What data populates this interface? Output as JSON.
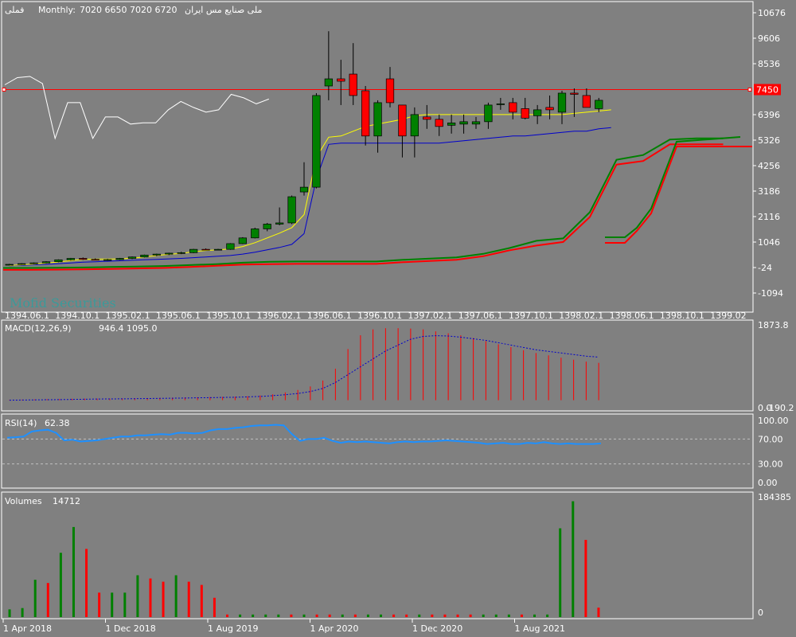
{
  "header": {
    "title": "ملی صنایع مس ایران",
    "symbol": "فملی",
    "timeframe": "Monthly:",
    "ohlc": "7020 6650 7020 6720"
  },
  "watermark": "Mofid Securities",
  "colors": {
    "background": "#808080",
    "bull": "#008000",
    "bear": "#ff0000",
    "ma_fast": "#ffff00",
    "ma_slow": "#0000cc",
    "white_line": "#ffffff",
    "price_line": "#ff0000",
    "rsi": "#1e90ff"
  },
  "chart_data": [
    {
      "type": "candlestick",
      "panel": "price",
      "y_ticks": [
        "10676",
        "9606",
        "8536",
        "7450",
        "6396",
        "5326",
        "4256",
        "3186",
        "2116",
        "1046",
        "-24",
        "-1094"
      ],
      "ylim": [
        -1094,
        10676
      ],
      "current_price_label": "7450",
      "x_ticks": [
        "1394.06.1",
        "1394.10.1",
        "1395.02.1",
        "1395.06.1",
        "1395.10.1",
        "1396.02.1",
        "1396.06.1",
        "1396.10.1",
        "1397.02.1",
        "1397.06.1",
        "1397.10.1",
        "1398.02.1",
        "1398.06.1",
        "1398.10.1",
        "1399.02"
      ],
      "candles": [
        {
          "o": 90,
          "h": 130,
          "l": 60,
          "c": 110
        },
        {
          "o": 110,
          "h": 160,
          "l": 90,
          "c": 140
        },
        {
          "o": 140,
          "h": 190,
          "l": 120,
          "c": 170
        },
        {
          "o": 170,
          "h": 240,
          "l": 150,
          "c": 220
        },
        {
          "o": 220,
          "h": 320,
          "l": 200,
          "c": 300
        },
        {
          "o": 300,
          "h": 380,
          "l": 270,
          "c": 360
        },
        {
          "o": 360,
          "h": 400,
          "l": 300,
          "c": 320
        },
        {
          "o": 320,
          "h": 360,
          "l": 280,
          "c": 300
        },
        {
          "o": 300,
          "h": 340,
          "l": 260,
          "c": 310
        },
        {
          "o": 310,
          "h": 380,
          "l": 290,
          "c": 360
        },
        {
          "o": 360,
          "h": 440,
          "l": 330,
          "c": 420
        },
        {
          "o": 420,
          "h": 520,
          "l": 400,
          "c": 500
        },
        {
          "o": 500,
          "h": 560,
          "l": 460,
          "c": 540
        },
        {
          "o": 540,
          "h": 600,
          "l": 500,
          "c": 580
        },
        {
          "o": 580,
          "h": 640,
          "l": 540,
          "c": 600
        },
        {
          "o": 600,
          "h": 760,
          "l": 580,
          "c": 740
        },
        {
          "o": 740,
          "h": 780,
          "l": 700,
          "c": 720
        },
        {
          "o": 720,
          "h": 760,
          "l": 700,
          "c": 740
        },
        {
          "o": 740,
          "h": 1000,
          "l": 720,
          "c": 980
        },
        {
          "o": 980,
          "h": 1250,
          "l": 960,
          "c": 1220
        },
        {
          "o": 1220,
          "h": 1650,
          "l": 1200,
          "c": 1600
        },
        {
          "o": 1600,
          "h": 1850,
          "l": 1500,
          "c": 1800
        },
        {
          "o": 1800,
          "h": 2500,
          "l": 1750,
          "c": 1850
        },
        {
          "o": 1850,
          "h": 3000,
          "l": 1800,
          "c": 2950
        },
        {
          "o": 3150,
          "h": 4400,
          "l": 3000,
          "c": 3350
        },
        {
          "o": 3350,
          "h": 7300,
          "l": 3300,
          "c": 7200
        },
        {
          "o": 7600,
          "h": 9900,
          "l": 7000,
          "c": 7900
        },
        {
          "o": 7900,
          "h": 8700,
          "l": 6800,
          "c": 7800
        },
        {
          "o": 8100,
          "h": 9400,
          "l": 6800,
          "c": 7200
        },
        {
          "o": 7400,
          "h": 7600,
          "l": 5100,
          "c": 5500
        },
        {
          "o": 5500,
          "h": 7000,
          "l": 4800,
          "c": 6900
        },
        {
          "o": 7900,
          "h": 8400,
          "l": 6700,
          "c": 6900
        },
        {
          "o": 6800,
          "h": 6800,
          "l": 4600,
          "c": 5500
        },
        {
          "o": 5500,
          "h": 6700,
          "l": 4600,
          "c": 6400
        },
        {
          "o": 6300,
          "h": 6800,
          "l": 5800,
          "c": 6200
        },
        {
          "o": 6200,
          "h": 6400,
          "l": 5500,
          "c": 5900
        },
        {
          "o": 5950,
          "h": 6400,
          "l": 5600,
          "c": 6050
        },
        {
          "o": 6000,
          "h": 6400,
          "l": 5600,
          "c": 6100
        },
        {
          "o": 6000,
          "h": 6300,
          "l": 5800,
          "c": 6100
        },
        {
          "o": 6100,
          "h": 6900,
          "l": 5800,
          "c": 6800
        },
        {
          "o": 6850,
          "h": 7100,
          "l": 6600,
          "c": 6850
        },
        {
          "o": 6900,
          "h": 7100,
          "l": 6200,
          "c": 6500
        },
        {
          "o": 6650,
          "h": 7100,
          "l": 6200,
          "c": 6250
        },
        {
          "o": 6350,
          "h": 6800,
          "l": 6000,
          "c": 6600
        },
        {
          "o": 6700,
          "h": 7200,
          "l": 6200,
          "c": 6600
        },
        {
          "o": 6500,
          "h": 7400,
          "l": 6000,
          "c": 7300
        },
        {
          "o": 7300,
          "h": 7500,
          "l": 6300,
          "c": 7250
        },
        {
          "o": 7200,
          "h": 7500,
          "l": 6700,
          "c": 6700
        },
        {
          "o": 6650,
          "h": 7100,
          "l": 6500,
          "c": 7000
        }
      ],
      "ma_fast": [
        60,
        90,
        120,
        160,
        210,
        270,
        320,
        330,
        330,
        340,
        370,
        420,
        480,
        530,
        570,
        640,
        690,
        720,
        760,
        860,
        1020,
        1220,
        1420,
        1650,
        2200,
        4600,
        5450,
        5500,
        5700,
        5900,
        6000,
        6100,
        6200,
        6350,
        6400,
        6400,
        6400,
        6400,
        6400,
        6400,
        6400,
        6400,
        6400,
        6400,
        6400,
        6400,
        6450,
        6500,
        6550,
        6600
      ],
      "ma_slow": [
        50,
        70,
        90,
        110,
        140,
        170,
        200,
        220,
        240,
        260,
        280,
        300,
        320,
        340,
        360,
        390,
        420,
        450,
        480,
        540,
        620,
        720,
        820,
        950,
        1400,
        3700,
        5150,
        5200,
        5200,
        5200,
        5200,
        5200,
        5200,
        5200,
        5200,
        5200,
        5250,
        5300,
        5350,
        5400,
        5450,
        5500,
        5500,
        5550,
        5600,
        5650,
        5700,
        5700,
        5800,
        5850
      ],
      "white_line": [
        7650,
        7950,
        8000,
        7700,
        5400,
        6900,
        6900,
        5400,
        6300,
        6300,
        6000,
        6050,
        6050,
        6600,
        6950,
        6700,
        6500,
        6600,
        7250,
        7100,
        6850,
        7050
      ],
      "lower_band_steps": [
        -120,
        -120,
        -110,
        -100,
        -80,
        -60,
        -40,
        0,
        50,
        100,
        120,
        130,
        130,
        130,
        130,
        200,
        250,
        300,
        450,
        700,
        900,
        1050,
        2100,
        4300,
        4450,
        5150,
        5150,
        5150
      ],
      "upper_band_steps": [
        -40,
        -40,
        -30,
        -20,
        0,
        20,
        40,
        80,
        120,
        180,
        220,
        230,
        230,
        230,
        230,
        300,
        350,
        400,
        550,
        800,
        1100,
        1200,
        2300,
        4500,
        4700,
        5350,
        5400,
        5400
      ]
    },
    {
      "type": "bar",
      "panel": "macd",
      "name": "MACD(12,26,9)",
      "legend_values": "946.4 1095.0",
      "y_ticks": [
        "1873.8",
        "0.0",
        "-190.2"
      ],
      "ylim": [
        -190.2,
        1873.8
      ],
      "values": [
        10,
        15,
        20,
        25,
        30,
        35,
        40,
        40,
        40,
        45,
        50,
        55,
        60,
        65,
        70,
        75,
        80,
        85,
        90,
        100,
        120,
        150,
        200,
        260,
        350,
        500,
        800,
        1300,
        1650,
        1800,
        1830,
        1830,
        1820,
        1800,
        1750,
        1700,
        1650,
        1580,
        1500,
        1420,
        1350,
        1270,
        1200,
        1140,
        1080,
        1030,
        980,
        950
      ],
      "signal": [
        0,
        5,
        8,
        12,
        15,
        20,
        25,
        30,
        32,
        35,
        38,
        42,
        46,
        50,
        55,
        60,
        65,
        70,
        75,
        85,
        95,
        115,
        140,
        170,
        220,
        300,
        450,
        650,
        850,
        1050,
        1250,
        1400,
        1550,
        1620,
        1640,
        1630,
        1600,
        1560,
        1520,
        1460,
        1400,
        1340,
        1280,
        1240,
        1200,
        1160,
        1120,
        1095
      ]
    },
    {
      "type": "line",
      "panel": "rsi",
      "name": "RSI(14)",
      "legend_value": "62.38",
      "y_ticks": [
        "100.00",
        "70.00",
        "30.00",
        "0.00"
      ],
      "ylim": [
        0,
        100
      ],
      "values": [
        72,
        73,
        74,
        82,
        84,
        85,
        80,
        68,
        69,
        66,
        67,
        68,
        70,
        72,
        74,
        74,
        76,
        76,
        77,
        78,
        77,
        80,
        80,
        79,
        80,
        84,
        86,
        86,
        88,
        89,
        91,
        92,
        92,
        93,
        92,
        78,
        67,
        70,
        70,
        72,
        67,
        64,
        66,
        65,
        66,
        65,
        64,
        63,
        65,
        66,
        65,
        66,
        66,
        67,
        68,
        67,
        66,
        65,
        64,
        62,
        63,
        64,
        62,
        62,
        64,
        63,
        65,
        63,
        62,
        63,
        62,
        62,
        62,
        63
      ],
      "levels": [
        70,
        30
      ]
    },
    {
      "type": "bar",
      "panel": "volume",
      "name": "Volumes",
      "legend_value": "14712",
      "y_ticks": [
        "184385",
        "0"
      ],
      "ylim": [
        0,
        184385
      ],
      "x_ticks": [
        "1 Apr 2018",
        "1 Dec 2018",
        "1 Aug 2019",
        "1 Apr 2020",
        "1 Dec 2020",
        "1 Aug 2021"
      ],
      "values": [
        12000,
        14000,
        58000,
        53000,
        100000,
        140000,
        106000,
        38000,
        38000,
        38000,
        65000,
        60000,
        55000,
        65000,
        55000,
        50000,
        30000,
        4000,
        4000,
        4000,
        4000,
        4000,
        4000,
        4000,
        4000,
        4000,
        4000,
        4000,
        4000,
        4000,
        4000,
        4000,
        4000,
        4000,
        4000,
        4000,
        4000,
        4000,
        4000,
        4000,
        4000,
        4000,
        4000,
        138000,
        180000,
        120000,
        14712
      ],
      "up": [
        1,
        1,
        1,
        0,
        1,
        1,
        0,
        0,
        1,
        1,
        1,
        0,
        0,
        1,
        0,
        0,
        0,
        0,
        1,
        1,
        1,
        1,
        0,
        1,
        0,
        0,
        1,
        0,
        1,
        1,
        0,
        0,
        1,
        0,
        0,
        0,
        0,
        1,
        1,
        1,
        0,
        1,
        1,
        1,
        1,
        0,
        0
      ]
    }
  ]
}
